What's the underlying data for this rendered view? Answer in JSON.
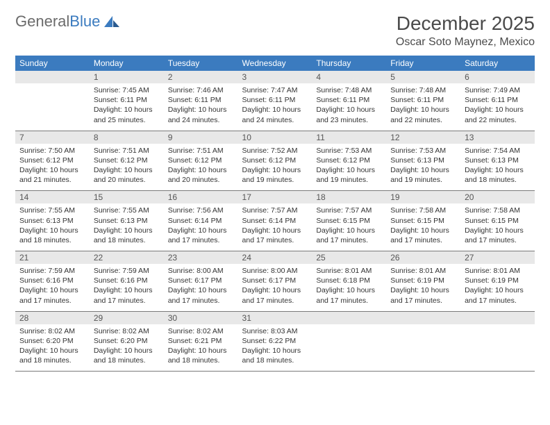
{
  "brand": {
    "name_part1": "General",
    "name_part2": "Blue"
  },
  "title": "December 2025",
  "location": "Oscar Soto Maynez, Mexico",
  "colors": {
    "header_bg": "#3b7bbf",
    "header_text": "#ffffff",
    "daynum_bg": "#e8e8e8",
    "text": "#333333",
    "border": "#7a7a7a"
  },
  "weekdays": [
    "Sunday",
    "Monday",
    "Tuesday",
    "Wednesday",
    "Thursday",
    "Friday",
    "Saturday"
  ],
  "weeks": [
    [
      {
        "empty": true
      },
      {
        "num": "1",
        "sunrise": "Sunrise: 7:45 AM",
        "sunset": "Sunset: 6:11 PM",
        "daylight": "Daylight: 10 hours and 25 minutes."
      },
      {
        "num": "2",
        "sunrise": "Sunrise: 7:46 AM",
        "sunset": "Sunset: 6:11 PM",
        "daylight": "Daylight: 10 hours and 24 minutes."
      },
      {
        "num": "3",
        "sunrise": "Sunrise: 7:47 AM",
        "sunset": "Sunset: 6:11 PM",
        "daylight": "Daylight: 10 hours and 24 minutes."
      },
      {
        "num": "4",
        "sunrise": "Sunrise: 7:48 AM",
        "sunset": "Sunset: 6:11 PM",
        "daylight": "Daylight: 10 hours and 23 minutes."
      },
      {
        "num": "5",
        "sunrise": "Sunrise: 7:48 AM",
        "sunset": "Sunset: 6:11 PM",
        "daylight": "Daylight: 10 hours and 22 minutes."
      },
      {
        "num": "6",
        "sunrise": "Sunrise: 7:49 AM",
        "sunset": "Sunset: 6:11 PM",
        "daylight": "Daylight: 10 hours and 22 minutes."
      }
    ],
    [
      {
        "num": "7",
        "sunrise": "Sunrise: 7:50 AM",
        "sunset": "Sunset: 6:12 PM",
        "daylight": "Daylight: 10 hours and 21 minutes."
      },
      {
        "num": "8",
        "sunrise": "Sunrise: 7:51 AM",
        "sunset": "Sunset: 6:12 PM",
        "daylight": "Daylight: 10 hours and 20 minutes."
      },
      {
        "num": "9",
        "sunrise": "Sunrise: 7:51 AM",
        "sunset": "Sunset: 6:12 PM",
        "daylight": "Daylight: 10 hours and 20 minutes."
      },
      {
        "num": "10",
        "sunrise": "Sunrise: 7:52 AM",
        "sunset": "Sunset: 6:12 PM",
        "daylight": "Daylight: 10 hours and 19 minutes."
      },
      {
        "num": "11",
        "sunrise": "Sunrise: 7:53 AM",
        "sunset": "Sunset: 6:12 PM",
        "daylight": "Daylight: 10 hours and 19 minutes."
      },
      {
        "num": "12",
        "sunrise": "Sunrise: 7:53 AM",
        "sunset": "Sunset: 6:13 PM",
        "daylight": "Daylight: 10 hours and 19 minutes."
      },
      {
        "num": "13",
        "sunrise": "Sunrise: 7:54 AM",
        "sunset": "Sunset: 6:13 PM",
        "daylight": "Daylight: 10 hours and 18 minutes."
      }
    ],
    [
      {
        "num": "14",
        "sunrise": "Sunrise: 7:55 AM",
        "sunset": "Sunset: 6:13 PM",
        "daylight": "Daylight: 10 hours and 18 minutes."
      },
      {
        "num": "15",
        "sunrise": "Sunrise: 7:55 AM",
        "sunset": "Sunset: 6:13 PM",
        "daylight": "Daylight: 10 hours and 18 minutes."
      },
      {
        "num": "16",
        "sunrise": "Sunrise: 7:56 AM",
        "sunset": "Sunset: 6:14 PM",
        "daylight": "Daylight: 10 hours and 17 minutes."
      },
      {
        "num": "17",
        "sunrise": "Sunrise: 7:57 AM",
        "sunset": "Sunset: 6:14 PM",
        "daylight": "Daylight: 10 hours and 17 minutes."
      },
      {
        "num": "18",
        "sunrise": "Sunrise: 7:57 AM",
        "sunset": "Sunset: 6:15 PM",
        "daylight": "Daylight: 10 hours and 17 minutes."
      },
      {
        "num": "19",
        "sunrise": "Sunrise: 7:58 AM",
        "sunset": "Sunset: 6:15 PM",
        "daylight": "Daylight: 10 hours and 17 minutes."
      },
      {
        "num": "20",
        "sunrise": "Sunrise: 7:58 AM",
        "sunset": "Sunset: 6:15 PM",
        "daylight": "Daylight: 10 hours and 17 minutes."
      }
    ],
    [
      {
        "num": "21",
        "sunrise": "Sunrise: 7:59 AM",
        "sunset": "Sunset: 6:16 PM",
        "daylight": "Daylight: 10 hours and 17 minutes."
      },
      {
        "num": "22",
        "sunrise": "Sunrise: 7:59 AM",
        "sunset": "Sunset: 6:16 PM",
        "daylight": "Daylight: 10 hours and 17 minutes."
      },
      {
        "num": "23",
        "sunrise": "Sunrise: 8:00 AM",
        "sunset": "Sunset: 6:17 PM",
        "daylight": "Daylight: 10 hours and 17 minutes."
      },
      {
        "num": "24",
        "sunrise": "Sunrise: 8:00 AM",
        "sunset": "Sunset: 6:17 PM",
        "daylight": "Daylight: 10 hours and 17 minutes."
      },
      {
        "num": "25",
        "sunrise": "Sunrise: 8:01 AM",
        "sunset": "Sunset: 6:18 PM",
        "daylight": "Daylight: 10 hours and 17 minutes."
      },
      {
        "num": "26",
        "sunrise": "Sunrise: 8:01 AM",
        "sunset": "Sunset: 6:19 PM",
        "daylight": "Daylight: 10 hours and 17 minutes."
      },
      {
        "num": "27",
        "sunrise": "Sunrise: 8:01 AM",
        "sunset": "Sunset: 6:19 PM",
        "daylight": "Daylight: 10 hours and 17 minutes."
      }
    ],
    [
      {
        "num": "28",
        "sunrise": "Sunrise: 8:02 AM",
        "sunset": "Sunset: 6:20 PM",
        "daylight": "Daylight: 10 hours and 18 minutes."
      },
      {
        "num": "29",
        "sunrise": "Sunrise: 8:02 AM",
        "sunset": "Sunset: 6:20 PM",
        "daylight": "Daylight: 10 hours and 18 minutes."
      },
      {
        "num": "30",
        "sunrise": "Sunrise: 8:02 AM",
        "sunset": "Sunset: 6:21 PM",
        "daylight": "Daylight: 10 hours and 18 minutes."
      },
      {
        "num": "31",
        "sunrise": "Sunrise: 8:03 AM",
        "sunset": "Sunset: 6:22 PM",
        "daylight": "Daylight: 10 hours and 18 minutes."
      },
      {
        "empty": true
      },
      {
        "empty": true
      },
      {
        "empty": true
      }
    ]
  ]
}
